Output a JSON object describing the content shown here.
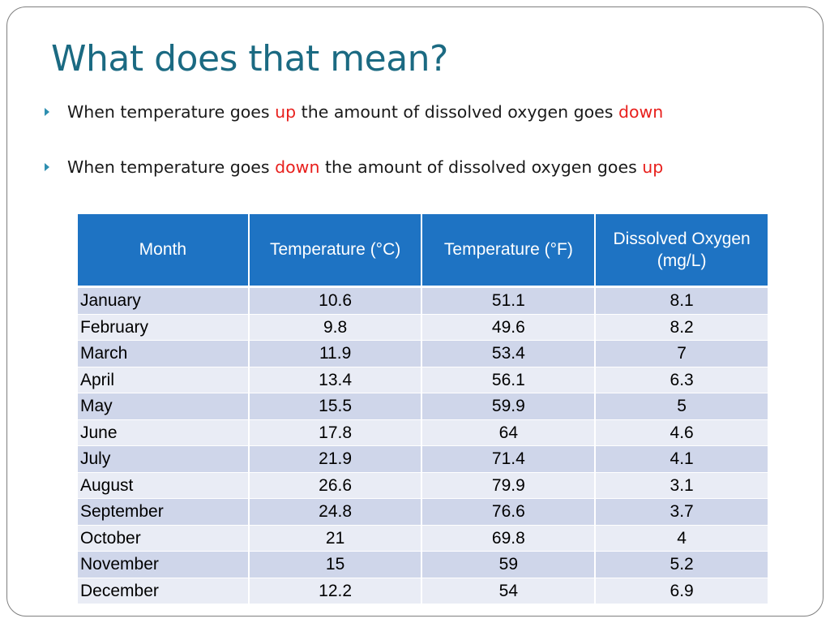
{
  "slide": {
    "title": "What does that mean?",
    "bullets": [
      {
        "parts": [
          "When temperature goes ",
          "up",
          " the amount of dissolved oxygen goes ",
          "down"
        ]
      },
      {
        "parts": [
          "When temperature goes ",
          "down",
          " the amount of dissolved oxygen goes ",
          "up"
        ]
      }
    ],
    "highlight_color": "#e8201d",
    "title_color": "#1b6a82"
  },
  "table": {
    "header_color": "#1e73c3",
    "headers": [
      "Month",
      "Temperature (°C)",
      "Temperature (°F)",
      "Dissolved Oxygen (mg/L)"
    ],
    "rows": [
      [
        "January",
        "10.6",
        "51.1",
        "8.1"
      ],
      [
        "February",
        "9.8",
        "49.6",
        "8.2"
      ],
      [
        "March",
        "11.9",
        "53.4",
        "7"
      ],
      [
        "April",
        "13.4",
        "56.1",
        "6.3"
      ],
      [
        "May",
        "15.5",
        "59.9",
        "5"
      ],
      [
        "June",
        "17.8",
        "64",
        "4.6"
      ],
      [
        "July",
        "21.9",
        "71.4",
        "4.1"
      ],
      [
        "August",
        "26.6",
        "79.9",
        "3.1"
      ],
      [
        "September",
        "24.8",
        "76.6",
        "3.7"
      ],
      [
        "October",
        "21",
        "69.8",
        "4"
      ],
      [
        "November",
        "15",
        "59",
        "5.2"
      ],
      [
        "December",
        "12.2",
        "54",
        "6.9"
      ]
    ]
  }
}
